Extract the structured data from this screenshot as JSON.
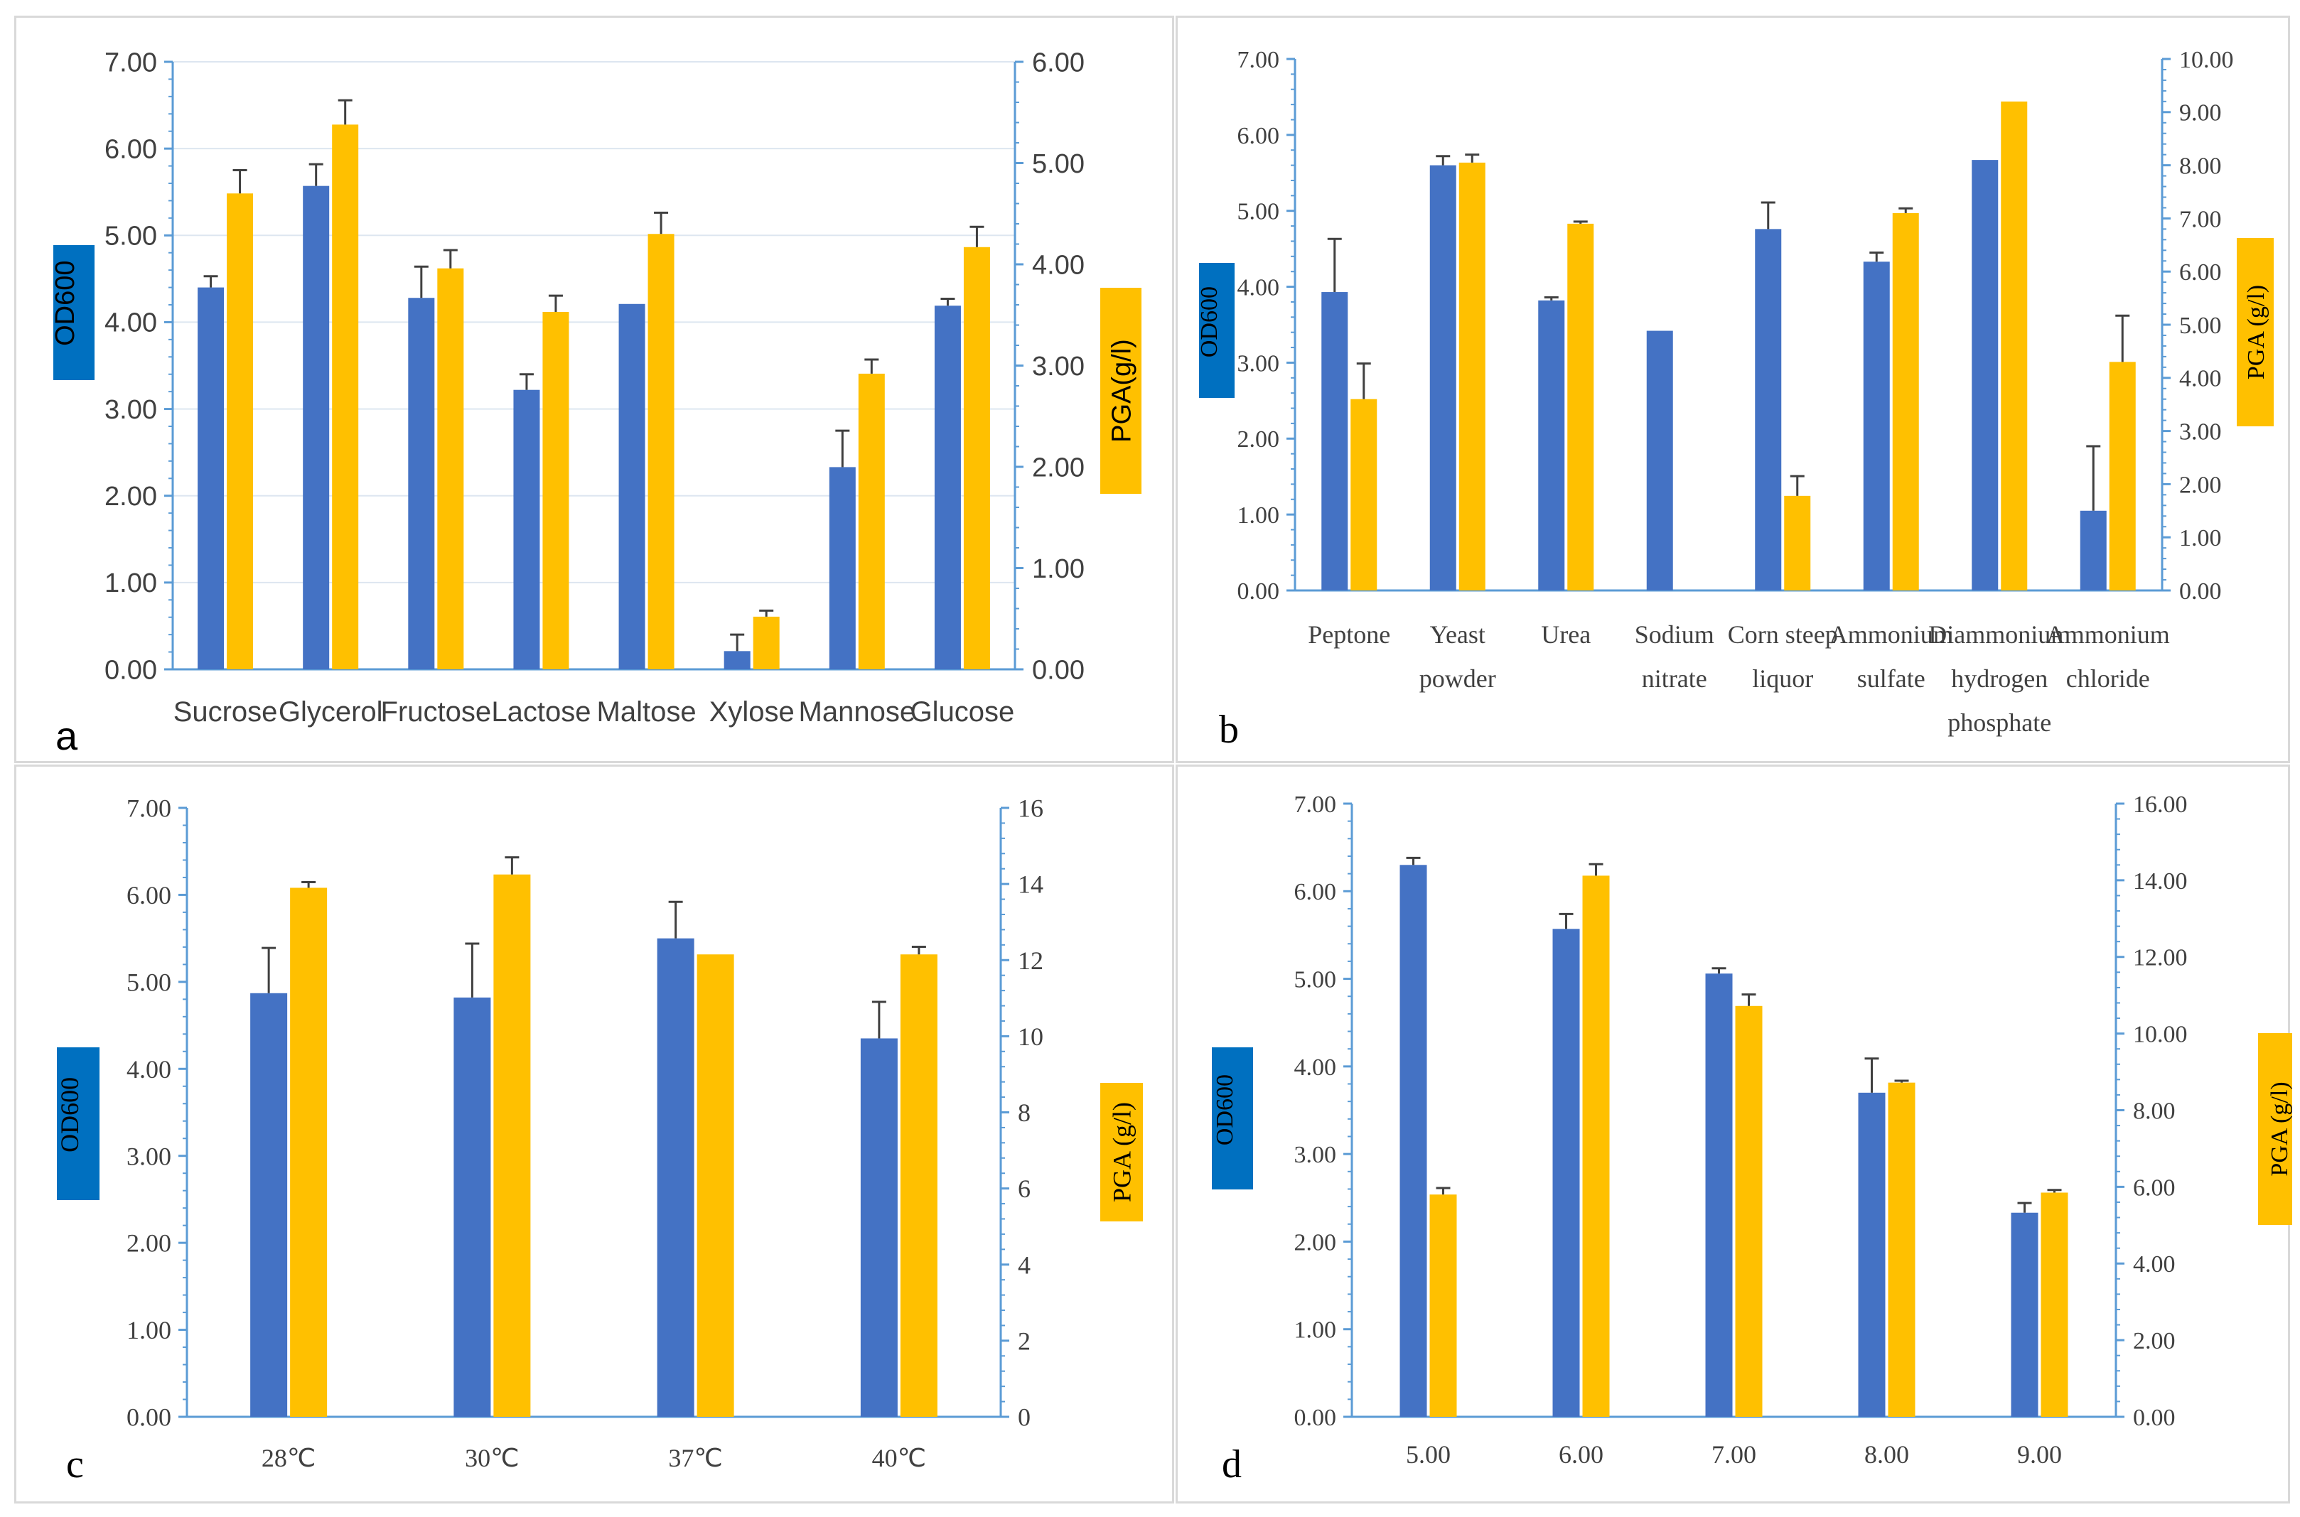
{
  "colors": {
    "od": "#4472c4",
    "pga": "#ffc000",
    "od_label_bg": "#0070c0",
    "pga_label_bg": "#ffc000",
    "axis": "#5b9bd5",
    "grid": "#dde6f0",
    "error": "#404040"
  },
  "chart_data": [
    {
      "type": "bar",
      "panel_label": "a",
      "categories": [
        "Sucrose",
        "Glycerol",
        "Fructose",
        "Lactose",
        "Maltose",
        "Xylose",
        "Mannose",
        "Glucose"
      ],
      "series": [
        {
          "name": "OD600",
          "axis": "left",
          "values": [
            4.4,
            5.57,
            4.28,
            3.22,
            4.21,
            0.21,
            2.33,
            4.19
          ],
          "errors": [
            0.13,
            0.25,
            0.36,
            0.18,
            0,
            0.19,
            0.42,
            0.08
          ]
        },
        {
          "name": "PGA(g/l)",
          "axis": "right",
          "values": [
            4.7,
            5.38,
            3.96,
            3.53,
            4.3,
            0.52,
            2.92,
            4.17
          ],
          "errors": [
            0.23,
            0.24,
            0.18,
            0.16,
            0.21,
            0.06,
            0.14,
            0.2
          ]
        }
      ],
      "left_axis": {
        "label": "OD600",
        "ylim": [
          0,
          7
        ],
        "ticks": [
          "0.00",
          "1.00",
          "2.00",
          "3.00",
          "4.00",
          "5.00",
          "6.00",
          "7.00"
        ]
      },
      "right_axis": {
        "label": "PGA(g/l)",
        "ylim": [
          0,
          6
        ],
        "ticks": [
          "0.00",
          "1.00",
          "2.00",
          "3.00",
          "4.00",
          "5.00",
          "6.00"
        ]
      },
      "grid": true
    },
    {
      "type": "bar",
      "panel_label": "b",
      "categories": [
        [
          "Peptone"
        ],
        [
          "Yeast",
          "powder"
        ],
        [
          "Urea"
        ],
        [
          "Sodium",
          "nitrate"
        ],
        [
          "Corn steep",
          "liquor"
        ],
        [
          "Ammonium",
          "sulfate"
        ],
        [
          "Diammonium",
          "hydrogen",
          "phosphate"
        ],
        [
          "Ammonium",
          "chloride"
        ]
      ],
      "series": [
        {
          "name": "OD600",
          "axis": "left",
          "values": [
            3.93,
            5.6,
            3.82,
            3.42,
            4.76,
            4.33,
            5.67,
            1.05
          ],
          "errors": [
            0.7,
            0.12,
            0.04,
            0,
            0.35,
            0.12,
            0,
            0.85
          ]
        },
        {
          "name": "PGA (g/l)",
          "axis": "right",
          "values": [
            3.6,
            8.05,
            6.9,
            0,
            1.78,
            7.1,
            9.2,
            4.3
          ],
          "errors": [
            0.67,
            0.15,
            0.04,
            0,
            0.37,
            0.09,
            0,
            0.87
          ]
        }
      ],
      "left_axis": {
        "label": "OD600",
        "ylim": [
          0,
          7
        ],
        "ticks": [
          "0.00",
          "1.00",
          "2.00",
          "3.00",
          "4.00",
          "5.00",
          "6.00",
          "7.00"
        ]
      },
      "right_axis": {
        "label": "PGA (g/l)",
        "ylim": [
          0,
          10
        ],
        "ticks": [
          "0.00",
          "1.00",
          "2.00",
          "3.00",
          "4.00",
          "5.00",
          "6.00",
          "7.00",
          "8.00",
          "9.00",
          "10.00"
        ]
      },
      "grid": false
    },
    {
      "type": "bar",
      "panel_label": "c",
      "categories": [
        "28℃",
        "30℃",
        "37℃",
        "40℃"
      ],
      "series": [
        {
          "name": "OD600",
          "axis": "left",
          "values": [
            4.87,
            4.82,
            5.5,
            4.35
          ],
          "errors": [
            0.52,
            0.62,
            0.42,
            0.42
          ]
        },
        {
          "name": "PGA (g/l)",
          "axis": "right",
          "values": [
            13.9,
            14.25,
            12.15,
            12.15
          ],
          "errors": [
            0.15,
            0.45,
            0,
            0.2
          ]
        }
      ],
      "left_axis": {
        "label": "OD600",
        "ylim": [
          0,
          7
        ],
        "ticks": [
          "0.00",
          "1.00",
          "2.00",
          "3.00",
          "4.00",
          "5.00",
          "6.00",
          "7.00"
        ]
      },
      "right_axis": {
        "label": "PGA (g/l)",
        "ylim": [
          0,
          16
        ],
        "ticks": [
          "0",
          "2",
          "4",
          "6",
          "8",
          "10",
          "12",
          "14",
          "16"
        ]
      },
      "grid": false
    },
    {
      "type": "bar",
      "panel_label": "d",
      "categories": [
        "5.00",
        "6.00",
        "7.00",
        "8.00",
        "9.00"
      ],
      "series": [
        {
          "name": "OD600",
          "axis": "left",
          "values": [
            6.3,
            5.57,
            5.06,
            3.7,
            2.33
          ],
          "errors": [
            0.08,
            0.17,
            0.06,
            0.39,
            0.11
          ]
        },
        {
          "name": "PGA (g/l)",
          "axis": "right",
          "values": [
            5.8,
            14.12,
            10.72,
            8.72,
            5.85
          ],
          "errors": [
            0.17,
            0.3,
            0.3,
            0.05,
            0.07
          ]
        }
      ],
      "left_axis": {
        "label": "OD600",
        "ylim": [
          0,
          7
        ],
        "ticks": [
          "0.00",
          "1.00",
          "2.00",
          "3.00",
          "4.00",
          "5.00",
          "6.00",
          "7.00"
        ]
      },
      "right_axis": {
        "label": "PGA (g/l)",
        "ylim": [
          0,
          16
        ],
        "ticks": [
          "0.00",
          "2.00",
          "4.00",
          "6.00",
          "8.00",
          "10.00",
          "12.00",
          "14.00",
          "16.00"
        ]
      },
      "grid": false
    }
  ]
}
